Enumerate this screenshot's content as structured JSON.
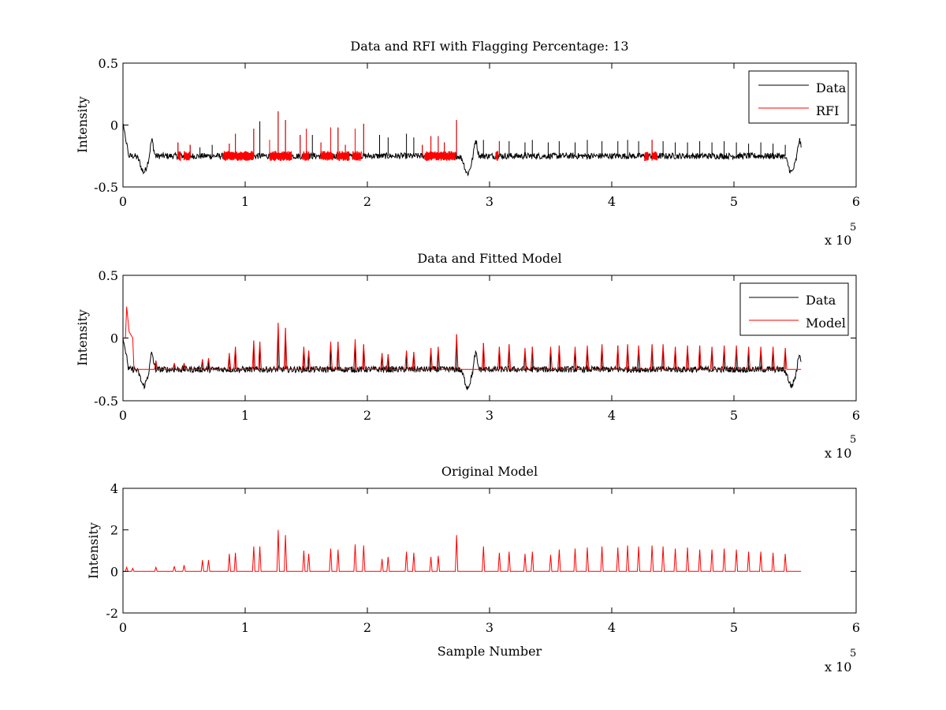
{
  "chart_data": [
    {
      "type": "line",
      "title": "Data and RFI with Flagging Percentage: 13",
      "xlabel": "",
      "ylabel": "Intensity",
      "xlim": [
        0,
        6
      ],
      "ylim": [
        -0.5,
        0.5
      ],
      "x_multiplier": "x 10",
      "x_multiplier_exponent": "5",
      "xticks": [
        "0",
        "1",
        "2",
        "3",
        "4",
        "5",
        "6"
      ],
      "yticks": [
        "-0.5",
        "0",
        "0.5"
      ],
      "legend": [
        {
          "name": "Data",
          "color": "#000000"
        },
        {
          "name": "RFI",
          "color": "#ff0000"
        }
      ],
      "legend_position": "top-right",
      "grid": false,
      "x_range_data": [
        0,
        5.55
      ],
      "baseline": -0.25,
      "dips": [
        {
          "x": 0.17,
          "y": -0.38
        },
        {
          "x": 2.82,
          "y": -0.39
        },
        {
          "x": 5.47,
          "y": -0.38
        }
      ],
      "spikes": [
        [
          0.45,
          -0.14
        ],
        [
          0.55,
          -0.16
        ],
        [
          0.63,
          -0.18
        ],
        [
          0.73,
          -0.16
        ],
        [
          0.87,
          -0.15
        ],
        [
          0.92,
          -0.07
        ],
        [
          1.07,
          -0.03
        ],
        [
          1.12,
          0.03
        ],
        [
          1.2,
          -0.12
        ],
        [
          1.27,
          0.11
        ],
        [
          1.33,
          0.04
        ],
        [
          1.45,
          -0.08
        ],
        [
          1.5,
          -0.03
        ],
        [
          1.55,
          -0.08
        ],
        [
          1.62,
          -0.14
        ],
        [
          1.7,
          -0.02
        ],
        [
          1.76,
          -0.02
        ],
        [
          1.82,
          -0.16
        ],
        [
          1.9,
          -0.03
        ],
        [
          1.97,
          0.01
        ],
        [
          2.1,
          -0.08
        ],
        [
          2.17,
          -0.1
        ],
        [
          2.32,
          -0.07
        ],
        [
          2.38,
          -0.1
        ],
        [
          2.45,
          -0.16
        ],
        [
          2.52,
          -0.09
        ],
        [
          2.58,
          -0.09
        ],
        [
          2.63,
          -0.14
        ],
        [
          2.73,
          0.04
        ],
        [
          2.95,
          -0.12
        ],
        [
          3.08,
          -0.13
        ],
        [
          3.16,
          -0.13
        ],
        [
          3.29,
          -0.14
        ],
        [
          3.35,
          -0.12
        ],
        [
          3.48,
          -0.14
        ],
        [
          3.57,
          -0.13
        ],
        [
          3.7,
          -0.14
        ],
        [
          3.8,
          -0.12
        ],
        [
          3.92,
          -0.13
        ],
        [
          4.05,
          -0.13
        ],
        [
          4.13,
          -0.12
        ],
        [
          4.22,
          -0.13
        ],
        [
          4.33,
          -0.12
        ],
        [
          4.42,
          -0.13
        ],
        [
          4.52,
          -0.14
        ],
        [
          4.62,
          -0.14
        ],
        [
          4.72,
          -0.13
        ],
        [
          4.82,
          -0.14
        ],
        [
          4.92,
          -0.13
        ],
        [
          5.02,
          -0.14
        ],
        [
          5.12,
          -0.15
        ],
        [
          5.22,
          -0.14
        ],
        [
          5.32,
          -0.15
        ],
        [
          5.42,
          -0.16
        ]
      ],
      "rfi_regions": [
        [
          0.45,
          0.47
        ],
        [
          0.5,
          0.55
        ],
        [
          0.82,
          1.07
        ],
        [
          1.2,
          1.38
        ],
        [
          1.47,
          1.52
        ],
        [
          1.62,
          1.72
        ],
        [
          1.75,
          1.85
        ],
        [
          1.88,
          1.95
        ],
        [
          2.47,
          2.72
        ],
        [
          3.05,
          3.07
        ],
        [
          4.27,
          4.3
        ],
        [
          4.33,
          4.37
        ]
      ]
    },
    {
      "type": "line",
      "title": "Data and Fitted Model",
      "xlabel": "",
      "ylabel": "Intensity",
      "xlim": [
        0,
        6
      ],
      "ylim": [
        -0.5,
        0.5
      ],
      "x_multiplier": "x 10",
      "x_multiplier_exponent": "5",
      "xticks": [
        "0",
        "1",
        "2",
        "3",
        "4",
        "5",
        "6"
      ],
      "yticks": [
        "-0.5",
        "0",
        "0.5"
      ],
      "legend": [
        {
          "name": "Data",
          "color": "#000000"
        },
        {
          "name": "Model",
          "color": "#ff0000"
        }
      ],
      "legend_position": "top-right",
      "grid": false,
      "x_range_data": [
        0,
        5.55
      ],
      "baseline": -0.25,
      "dips": [
        {
          "x": 0.17,
          "y": -0.38
        },
        {
          "x": 2.82,
          "y": -0.39
        },
        {
          "x": 5.47,
          "y": -0.38
        }
      ],
      "model_start_peak": 0.25,
      "spikes": [
        [
          0.27,
          -0.18
        ],
        [
          0.42,
          -0.2
        ],
        [
          0.5,
          -0.2
        ],
        [
          0.65,
          -0.17
        ],
        [
          0.7,
          -0.16
        ],
        [
          0.87,
          -0.12
        ],
        [
          0.92,
          -0.07
        ],
        [
          1.07,
          -0.02
        ],
        [
          1.12,
          -0.03
        ],
        [
          1.27,
          0.12
        ],
        [
          1.33,
          0.08
        ],
        [
          1.48,
          -0.07
        ],
        [
          1.52,
          -0.1
        ],
        [
          1.7,
          -0.03
        ],
        [
          1.76,
          -0.03
        ],
        [
          1.9,
          -0.01
        ],
        [
          1.97,
          -0.05
        ],
        [
          2.12,
          -0.12
        ],
        [
          2.17,
          -0.13
        ],
        [
          2.32,
          -0.1
        ],
        [
          2.38,
          -0.11
        ],
        [
          2.52,
          -0.08
        ],
        [
          2.58,
          -0.07
        ],
        [
          2.73,
          0.03
        ],
        [
          2.95,
          -0.04
        ],
        [
          3.08,
          -0.07
        ],
        [
          3.16,
          -0.05
        ],
        [
          3.29,
          -0.08
        ],
        [
          3.35,
          -0.07
        ],
        [
          3.5,
          -0.07
        ],
        [
          3.57,
          -0.06
        ],
        [
          3.7,
          -0.07
        ],
        [
          3.8,
          -0.06
        ],
        [
          3.92,
          -0.05
        ],
        [
          4.05,
          -0.06
        ],
        [
          4.13,
          -0.05
        ],
        [
          4.22,
          -0.06
        ],
        [
          4.33,
          -0.05
        ],
        [
          4.42,
          -0.05
        ],
        [
          4.52,
          -0.07
        ],
        [
          4.62,
          -0.06
        ],
        [
          4.72,
          -0.06
        ],
        [
          4.82,
          -0.07
        ],
        [
          4.92,
          -0.06
        ],
        [
          5.02,
          -0.06
        ],
        [
          5.12,
          -0.07
        ],
        [
          5.22,
          -0.07
        ],
        [
          5.32,
          -0.07
        ],
        [
          5.42,
          -0.08
        ]
      ]
    },
    {
      "type": "line",
      "title": "Original Model",
      "xlabel": "Sample Number",
      "ylabel": "Intensity",
      "xlim": [
        0,
        6
      ],
      "ylim": [
        -2,
        4
      ],
      "x_multiplier": "x 10",
      "x_multiplier_exponent": "5",
      "xticks": [
        "0",
        "1",
        "2",
        "3",
        "4",
        "5",
        "6"
      ],
      "yticks": [
        "-2",
        "0",
        "2",
        "4"
      ],
      "legend": [],
      "grid": false,
      "series_color": "#ff0000",
      "x_range_data": [
        0,
        5.55
      ],
      "baseline": 0,
      "spikes": [
        [
          0.03,
          0.2
        ],
        [
          0.08,
          0.15
        ],
        [
          0.27,
          0.2
        ],
        [
          0.42,
          0.25
        ],
        [
          0.5,
          0.3
        ],
        [
          0.65,
          0.55
        ],
        [
          0.7,
          0.55
        ],
        [
          0.87,
          0.85
        ],
        [
          0.92,
          0.9
        ],
        [
          1.07,
          1.2
        ],
        [
          1.12,
          1.2
        ],
        [
          1.27,
          2.0
        ],
        [
          1.33,
          1.75
        ],
        [
          1.48,
          1.0
        ],
        [
          1.52,
          0.85
        ],
        [
          1.7,
          1.1
        ],
        [
          1.76,
          1.05
        ],
        [
          1.9,
          1.3
        ],
        [
          1.97,
          1.25
        ],
        [
          2.12,
          0.6
        ],
        [
          2.17,
          0.7
        ],
        [
          2.32,
          0.95
        ],
        [
          2.38,
          0.9
        ],
        [
          2.52,
          0.7
        ],
        [
          2.58,
          0.75
        ],
        [
          2.73,
          1.75
        ],
        [
          2.95,
          1.2
        ],
        [
          3.08,
          0.9
        ],
        [
          3.16,
          0.95
        ],
        [
          3.29,
          0.85
        ],
        [
          3.35,
          0.95
        ],
        [
          3.5,
          0.8
        ],
        [
          3.57,
          1.05
        ],
        [
          3.7,
          1.1
        ],
        [
          3.8,
          1.15
        ],
        [
          3.92,
          1.2
        ],
        [
          4.05,
          1.15
        ],
        [
          4.13,
          1.25
        ],
        [
          4.22,
          1.2
        ],
        [
          4.33,
          1.25
        ],
        [
          4.42,
          1.2
        ],
        [
          4.52,
          1.1
        ],
        [
          4.62,
          1.15
        ],
        [
          4.72,
          1.05
        ],
        [
          4.82,
          1.05
        ],
        [
          4.92,
          1.1
        ],
        [
          5.02,
          1.05
        ],
        [
          5.12,
          0.95
        ],
        [
          5.22,
          0.95
        ],
        [
          5.32,
          0.9
        ],
        [
          5.42,
          0.85
        ]
      ]
    }
  ]
}
